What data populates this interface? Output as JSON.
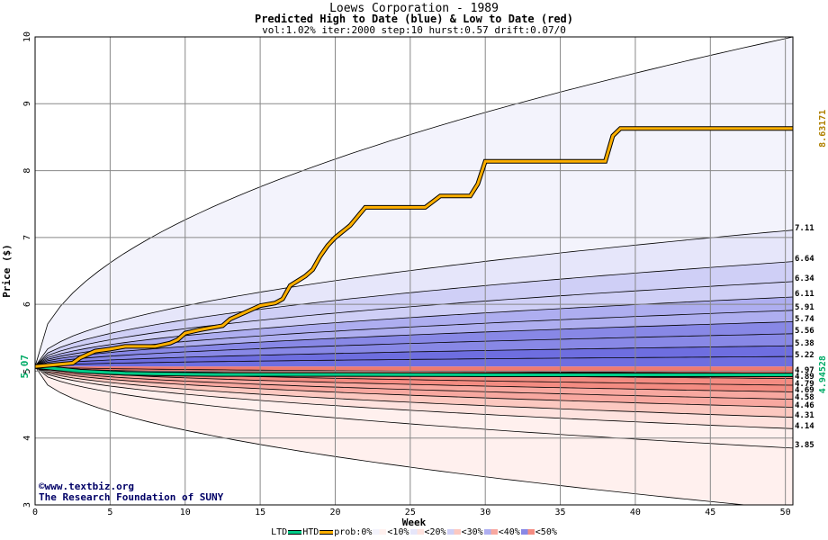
{
  "header": {
    "title": "Loews Corporation - 1989",
    "subtitle": "Predicted High to Date (blue) &  Low to Date (red)",
    "params": "vol:1.02% iter:2000 step:10 hurst:0.57 drift:0.07/0"
  },
  "credits": {
    "site": "©www.textbiz.org",
    "org": "The Research Foundation of SUNY"
  },
  "chart_data": {
    "type": "area",
    "xlabel": "Week",
    "ylabel": "Price ($)",
    "xlim": [
      0,
      50.5
    ],
    "ylim": [
      3,
      10
    ],
    "x_ticks": [
      0,
      5,
      10,
      15,
      20,
      25,
      30,
      35,
      40,
      45,
      50
    ],
    "y_ticks": [
      3,
      4,
      5,
      6,
      7,
      8,
      9,
      10
    ],
    "grid": true,
    "start_price": "5.07",
    "start_value": 5.07,
    "htd_final": "8.63171",
    "ltd_final": "4.94528",
    "colors": {
      "htd": "#ffb000",
      "ltd": "#00cc88",
      "blue_bands": [
        "#f3f3fc",
        "#e6e6fa",
        "#cfcff6",
        "#aeaef0",
        "#8888e6",
        "#6e6ee0"
      ],
      "red_bands": [
        "#fff0ee",
        "#fee2de",
        "#fcc8c0",
        "#f8a8a0",
        "#f48c82",
        "#ef7a70"
      ]
    },
    "right_labels": [
      "7.11",
      "6.64",
      "6.34",
      "6.11",
      "5.91",
      "5.74",
      "5.56",
      "5.38",
      "5.22",
      "4.97",
      "4.89",
      "4.79",
      "4.69",
      "4.58",
      "4.46",
      "4.31",
      "4.14",
      "3.85"
    ],
    "high_quantiles": [
      {
        "final": 10.0,
        "p": 0.5
      },
      {
        "final": 7.11,
        "p": 0.5
      },
      {
        "final": 6.64,
        "p": 0.5
      },
      {
        "final": 6.34,
        "p": 0.5
      },
      {
        "final": 6.11,
        "p": 0.5
      },
      {
        "final": 5.91,
        "p": 0.5
      },
      {
        "final": 5.74,
        "p": 0.5
      },
      {
        "final": 5.56,
        "p": 0.5
      },
      {
        "final": 5.38,
        "p": 0.5
      },
      {
        "final": 5.22,
        "p": 0.5
      }
    ],
    "low_quantiles": [
      {
        "final": 4.97,
        "p": 0.5
      },
      {
        "final": 4.89,
        "p": 0.5
      },
      {
        "final": 4.79,
        "p": 0.5
      },
      {
        "final": 4.69,
        "p": 0.5
      },
      {
        "final": 4.58,
        "p": 0.5
      },
      {
        "final": 4.46,
        "p": 0.5
      },
      {
        "final": 4.31,
        "p": 0.5
      },
      {
        "final": 4.14,
        "p": 0.5
      },
      {
        "final": 3.85,
        "p": 0.5
      },
      {
        "final": 2.93,
        "p": 0.5
      }
    ],
    "htd_series": {
      "x": [
        0,
        1,
        2.5,
        3,
        4,
        5,
        6,
        8,
        9,
        9.5,
        10,
        11,
        12.5,
        13,
        14,
        15,
        16,
        16.5,
        17,
        18,
        18.5,
        19,
        19.5,
        20,
        21,
        22,
        26,
        27,
        29,
        29.5,
        30,
        38,
        38.5,
        39,
        50.5
      ],
      "y": [
        5.07,
        5.09,
        5.12,
        5.2,
        5.3,
        5.33,
        5.37,
        5.37,
        5.42,
        5.47,
        5.57,
        5.62,
        5.68,
        5.78,
        5.88,
        5.98,
        6.02,
        6.08,
        6.28,
        6.42,
        6.52,
        6.72,
        6.88,
        7.0,
        7.18,
        7.45,
        7.45,
        7.62,
        7.62,
        7.8,
        8.14,
        8.14,
        8.52,
        8.63,
        8.63
      ]
    },
    "ltd_series": {
      "x": [
        0,
        3,
        6,
        8,
        12,
        20,
        30,
        40,
        50.5
      ],
      "y": [
        5.07,
        5.0,
        4.97,
        4.96,
        4.95,
        4.95,
        4.945,
        4.945,
        4.945
      ]
    },
    "legend": [
      "LTD",
      "HTD",
      "prob:0%",
      "<10%",
      "<20%",
      "<30%",
      "<40%",
      "<50%"
    ]
  }
}
